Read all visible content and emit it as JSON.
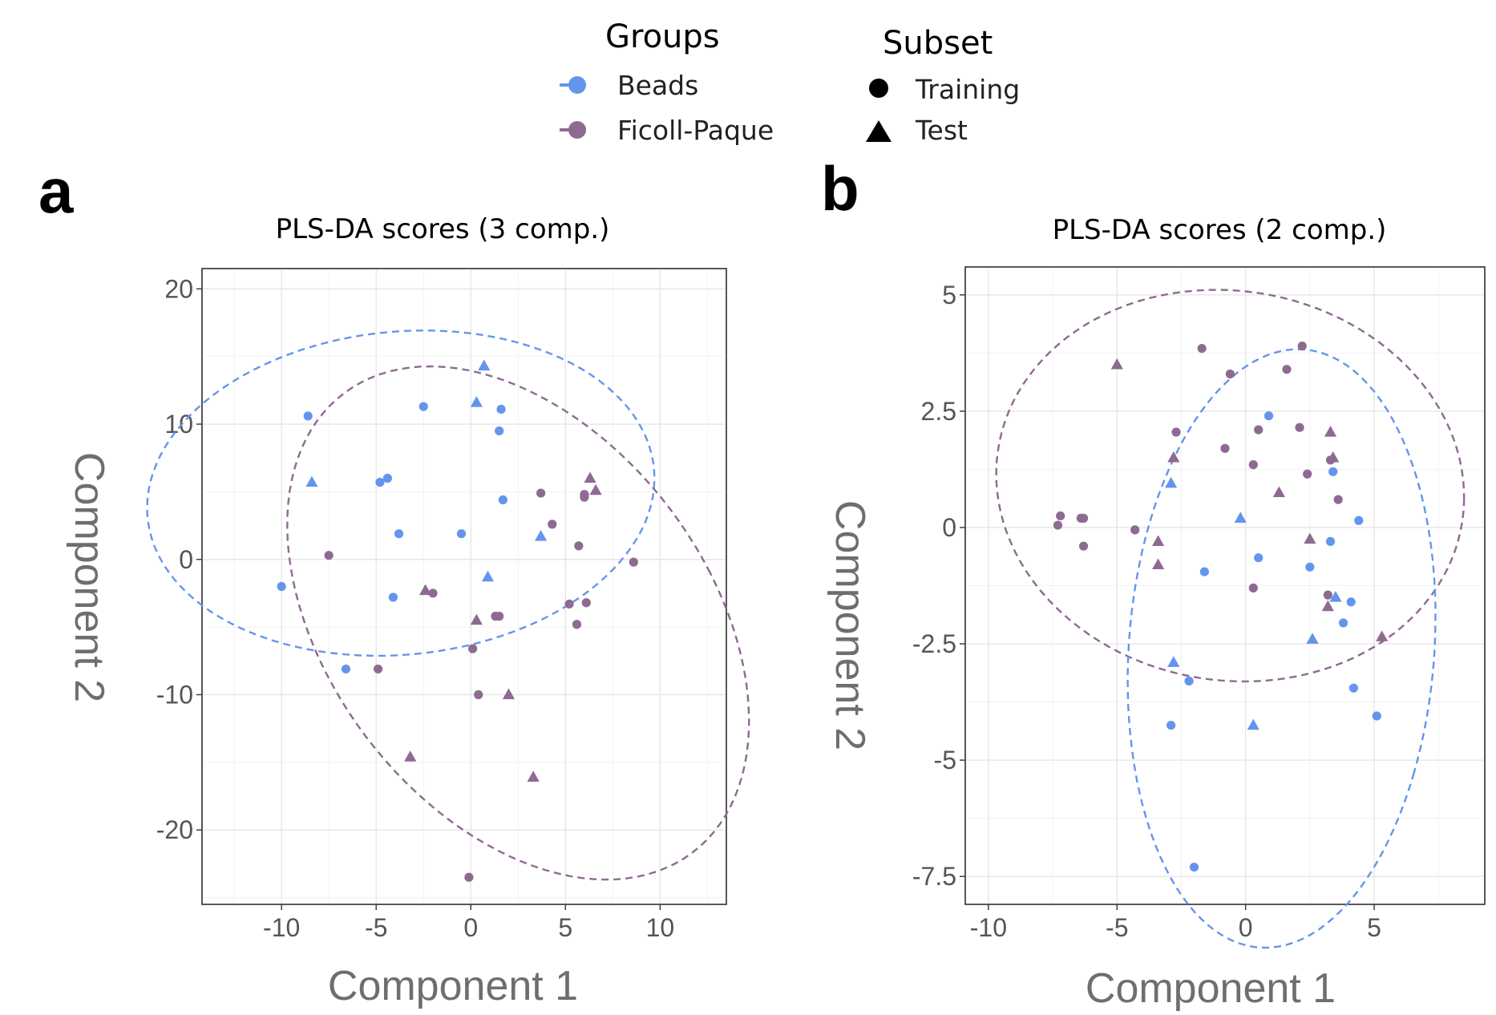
{
  "colors": {
    "beads": "#6495ED",
    "ficoll": "#8E6A92"
  },
  "legend": {
    "groups": {
      "title": "Groups",
      "items": [
        {
          "key": "beads",
          "label": "Beads"
        },
        {
          "key": "ficoll",
          "label": "Ficoll-Paque"
        }
      ]
    },
    "subset": {
      "title": "Subset",
      "items": [
        {
          "key": "training",
          "label": "Training",
          "shape": "circle"
        },
        {
          "key": "test",
          "label": "Test",
          "shape": "triangle"
        }
      ]
    }
  },
  "chart_data": [
    {
      "panel": "a",
      "type": "scatter",
      "title": "PLS-DA scores (3 comp.)",
      "xlabel": "Component 1",
      "ylabel": "Component 2",
      "xlim": [
        -14.2,
        13.5
      ],
      "ylim": [
        -25.5,
        21.5
      ],
      "xticks": [
        -10,
        -5,
        0,
        5,
        10
      ],
      "yticks": [
        -20,
        -10,
        0,
        10,
        20
      ],
      "xtick_labels": [
        "-10",
        "-5",
        "0",
        "5",
        "10"
      ],
      "ytick_labels": [
        "-20",
        "-10",
        "0",
        "10",
        "20"
      ],
      "ellipses": [
        {
          "group": "beads",
          "cx": -3.7,
          "cy": 4.9,
          "rx": 13.6,
          "ry": 11.8,
          "angle": 20
        },
        {
          "group": "ficoll",
          "cx": 2.5,
          "cy": -4.7,
          "rx": 10.8,
          "ry": 19.8,
          "angle": 20
        }
      ],
      "series": [
        {
          "group": "beads",
          "subset": "training",
          "points": [
            [
              -10,
              -2
            ],
            [
              -8.6,
              10.6
            ],
            [
              -6.6,
              -8.1
            ],
            [
              -4.8,
              5.7
            ],
            [
              -4.4,
              6.0
            ],
            [
              -4.1,
              -2.8
            ],
            [
              -3.8,
              1.9
            ],
            [
              -2.5,
              11.3
            ],
            [
              -0.5,
              1.9
            ],
            [
              1.5,
              9.5
            ],
            [
              1.6,
              11.1
            ],
            [
              1.7,
              4.4
            ]
          ]
        },
        {
          "group": "beads",
          "subset": "test",
          "points": [
            [
              -8.4,
              5.7
            ],
            [
              0.3,
              11.6
            ],
            [
              0.7,
              14.3
            ],
            [
              0.9,
              -1.3
            ],
            [
              3.7,
              1.7
            ]
          ]
        },
        {
          "group": "ficoll",
          "subset": "training",
          "points": [
            [
              -7.5,
              0.3
            ],
            [
              -4.9,
              -8.1
            ],
            [
              -2.0,
              -2.5
            ],
            [
              0.1,
              -6.6
            ],
            [
              0.4,
              -10.0
            ],
            [
              1.3,
              -4.2
            ],
            [
              1.5,
              -4.2
            ],
            [
              3.7,
              4.9
            ],
            [
              4.3,
              2.6
            ],
            [
              5.2,
              -3.3
            ],
            [
              5.6,
              -4.8
            ],
            [
              5.7,
              1.0
            ],
            [
              6.0,
              4.8
            ],
            [
              6.0,
              4.6
            ],
            [
              6.1,
              -3.2
            ],
            [
              8.6,
              -0.2
            ],
            [
              -0.1,
              -23.5
            ]
          ]
        },
        {
          "group": "ficoll",
          "subset": "test",
          "points": [
            [
              -3.2,
              -14.6
            ],
            [
              -2.4,
              -2.3
            ],
            [
              0.3,
              -4.5
            ],
            [
              2.0,
              -10.0
            ],
            [
              3.3,
              -16.1
            ],
            [
              6.3,
              6.0
            ],
            [
              6.6,
              5.1
            ]
          ]
        }
      ]
    },
    {
      "panel": "b",
      "type": "scatter",
      "title": "PLS-DA scores (2 comp.)",
      "xlabel": "Component 1",
      "ylabel": "Component 2",
      "xlim": [
        -10.9,
        9.3
      ],
      "ylim": [
        -8.1,
        5.6
      ],
      "xticks": [
        -10,
        -5,
        0,
        5
      ],
      "yticks": [
        -7.5,
        -5,
        -2.5,
        0,
        2.5,
        5
      ],
      "xtick_labels": [
        "-10",
        "-5",
        "0",
        "5"
      ],
      "ytick_labels": [
        "-7.5",
        "-5",
        "-2.5",
        "0",
        "2.5",
        "5"
      ],
      "ellipses": [
        {
          "group": "ficoll",
          "cx": -0.6,
          "cy": 0.9,
          "rx": 9.1,
          "ry": 4.2,
          "angle": -2
        },
        {
          "group": "beads",
          "cx": 1.4,
          "cy": -2.6,
          "rx": 5.8,
          "ry": 6.6,
          "angle": -28
        }
      ],
      "series": [
        {
          "group": "beads",
          "subset": "training",
          "points": [
            [
              0.9,
              2.4
            ],
            [
              3.4,
              1.2
            ],
            [
              4.4,
              0.15
            ],
            [
              3.3,
              -0.3
            ],
            [
              0.5,
              -0.65
            ],
            [
              2.5,
              -0.85
            ],
            [
              -1.6,
              -0.95
            ],
            [
              4.1,
              -1.6
            ],
            [
              3.8,
              -2.05
            ],
            [
              -2.2,
              -3.3
            ],
            [
              4.2,
              -3.45
            ],
            [
              -2.9,
              -4.25
            ],
            [
              5.1,
              -4.05
            ],
            [
              -2.0,
              -7.3
            ]
          ]
        },
        {
          "group": "beads",
          "subset": "test",
          "points": [
            [
              -2.9,
              0.95
            ],
            [
              -0.2,
              0.2
            ],
            [
              3.5,
              -1.5
            ],
            [
              -2.8,
              -2.9
            ],
            [
              2.6,
              -2.4
            ],
            [
              0.3,
              -4.25
            ]
          ]
        },
        {
          "group": "ficoll",
          "subset": "training",
          "points": [
            [
              -7.2,
              0.25
            ],
            [
              -7.3,
              0.05
            ],
            [
              -6.4,
              0.2
            ],
            [
              -6.3,
              0.2
            ],
            [
              -6.3,
              -0.4
            ],
            [
              -4.3,
              -0.05
            ],
            [
              -2.7,
              2.05
            ],
            [
              -1.7,
              3.85
            ],
            [
              -0.6,
              3.3
            ],
            [
              -0.8,
              1.7
            ],
            [
              0.3,
              1.35
            ],
            [
              0.5,
              2.1
            ],
            [
              1.6,
              3.4
            ],
            [
              2.1,
              2.15
            ],
            [
              2.2,
              3.9
            ],
            [
              2.4,
              1.15
            ],
            [
              3.3,
              1.45
            ],
            [
              3.6,
              0.6
            ],
            [
              0.3,
              -1.3
            ],
            [
              3.2,
              -1.45
            ]
          ]
        },
        {
          "group": "ficoll",
          "subset": "test",
          "points": [
            [
              -5.0,
              3.5
            ],
            [
              -3.4,
              -0.3
            ],
            [
              -2.8,
              1.5
            ],
            [
              -3.4,
              -0.8
            ],
            [
              1.3,
              0.75
            ],
            [
              2.5,
              -0.25
            ],
            [
              3.3,
              2.05
            ],
            [
              3.4,
              1.5
            ],
            [
              3.2,
              -1.7
            ],
            [
              5.3,
              -2.35
            ]
          ]
        }
      ]
    }
  ],
  "panels": [
    {
      "letter": "a"
    },
    {
      "letter": "b"
    }
  ]
}
